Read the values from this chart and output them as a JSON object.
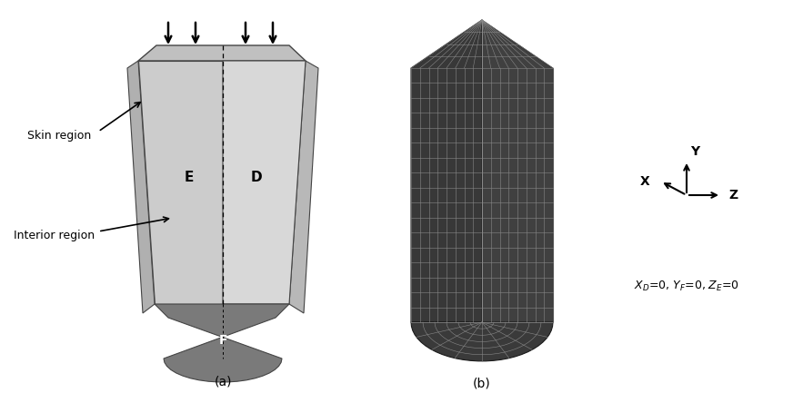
{
  "fig_width": 8.72,
  "fig_height": 4.33,
  "dpi": 100,
  "bg_color": "#ffffff",
  "label_a": "(a)",
  "label_b": "(b)",
  "label_skin": "Skin region",
  "label_interior": "Interior region",
  "label_E": "E",
  "label_D": "D",
  "label_F": "F",
  "label_X": "X",
  "label_Y": "Y",
  "label_Z": "Z",
  "face_E_color": "#cccccc",
  "face_D_color": "#d8d8d8",
  "face_top_color": "#c0c0c0",
  "face_side_color": "#b0b0b0",
  "face_bottom_color": "#7a7a7a",
  "edge_color": "#444444",
  "mesh_bg_color": "#383838",
  "mesh_line_color": "#888888",
  "mesh_edge_color": "#1a1a1a"
}
